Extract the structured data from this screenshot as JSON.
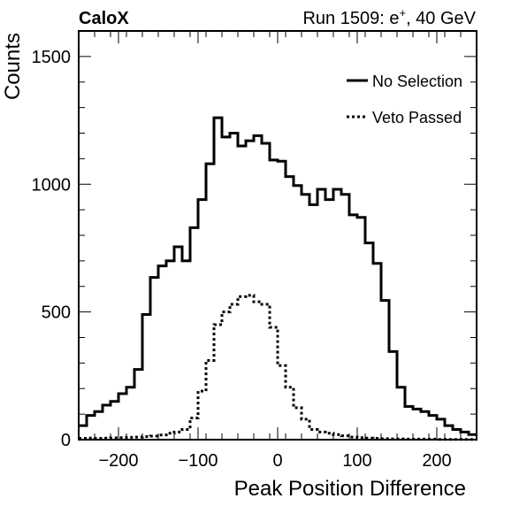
{
  "header": {
    "left": "CaloX",
    "right_prefix": "Run 1509: e",
    "right_sup": "+",
    "right_suffix": ", 40 GeV"
  },
  "chart_data": {
    "type": "line",
    "xlabel": "Peak Position Difference",
    "ylabel": "Counts",
    "xlim": [
      -250,
      250
    ],
    "ylim": [
      0,
      1600
    ],
    "bin_width": 10,
    "bin_start": -250,
    "x_ticks": [
      -200,
      -100,
      0,
      100,
      200
    ],
    "y_ticks": [
      0,
      500,
      1000,
      1500
    ],
    "x_tick_labels": [
      "−200",
      "−100",
      "0",
      "100",
      "200"
    ],
    "y_tick_labels": [
      "0",
      "500",
      "1000",
      "1500"
    ],
    "legend_position": "top-right",
    "series": [
      {
        "name": "No Selection",
        "style": "solid",
        "color": "#000000",
        "values": [
          55,
          95,
          110,
          135,
          150,
          180,
          205,
          275,
          490,
          635,
          680,
          700,
          755,
          700,
          830,
          940,
          1080,
          1260,
          1185,
          1200,
          1150,
          1170,
          1190,
          1160,
          1095,
          1090,
          1030,
          995,
          960,
          920,
          980,
          940,
          980,
          960,
          880,
          870,
          770,
          690,
          545,
          345,
          205,
          130,
          120,
          110,
          95,
          80,
          55,
          40,
          30,
          20
        ]
      },
      {
        "name": "Veto Passed",
        "style": "dotted",
        "color": "#000000",
        "values": [
          5,
          6,
          5,
          6,
          7,
          8,
          9,
          10,
          12,
          14,
          18,
          25,
          30,
          40,
          85,
          190,
          310,
          450,
          500,
          530,
          560,
          565,
          540,
          530,
          440,
          290,
          205,
          125,
          80,
          40,
          30,
          25,
          20,
          15,
          10,
          8,
          6,
          5,
          4,
          3,
          3,
          2,
          2,
          2,
          2,
          1,
          1,
          1,
          1,
          1
        ]
      }
    ]
  }
}
